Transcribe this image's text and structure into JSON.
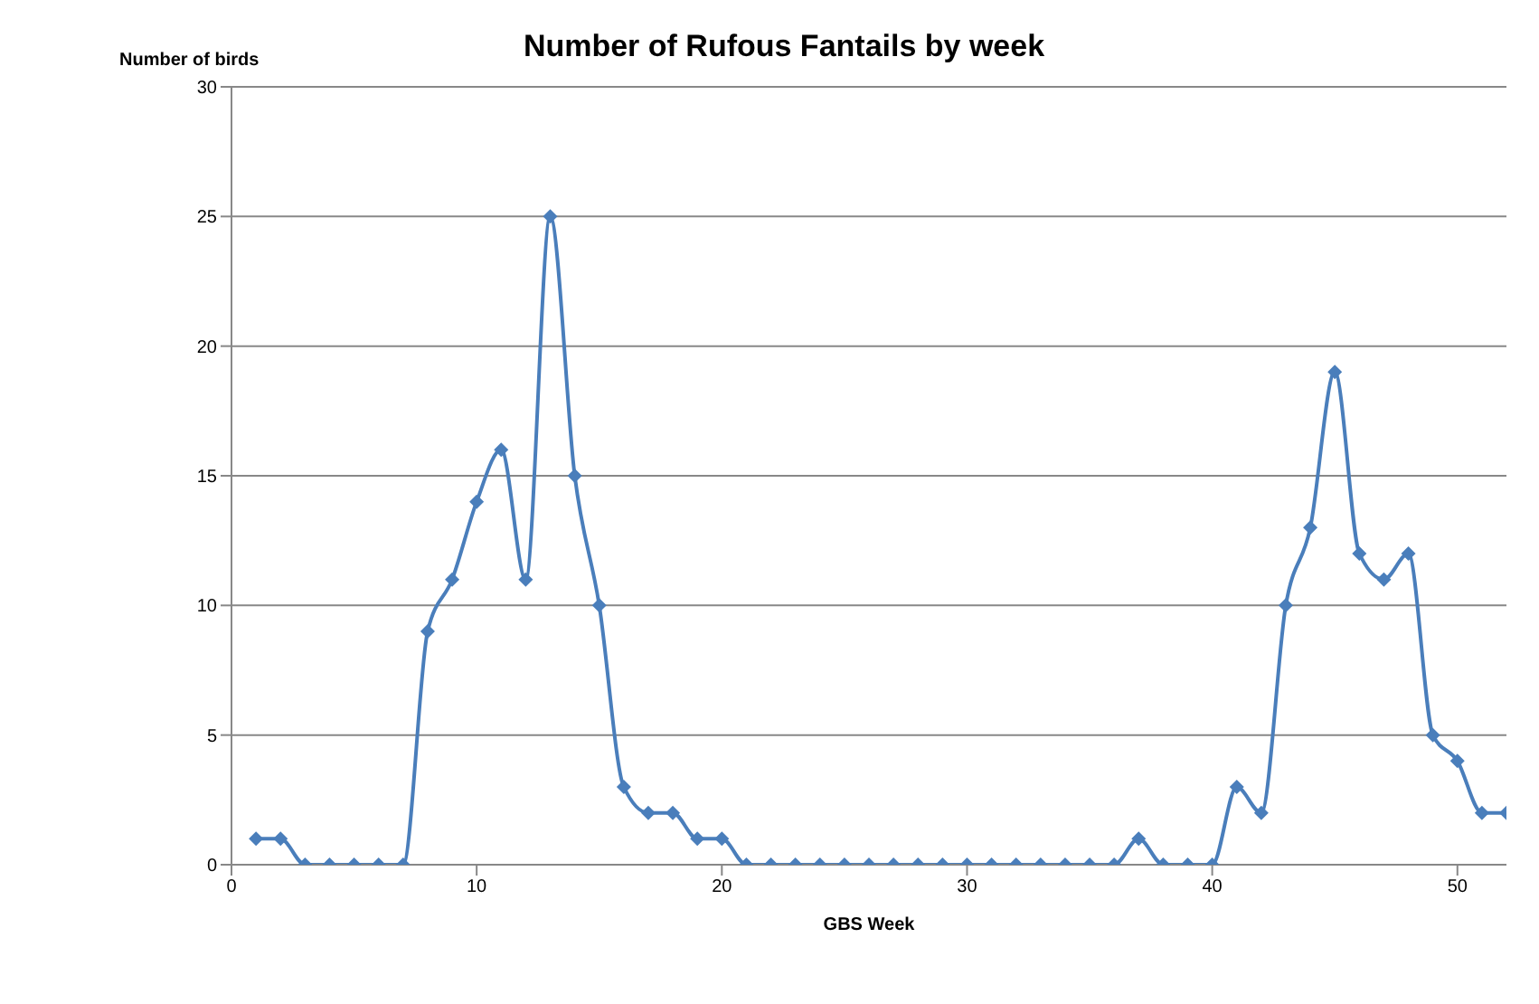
{
  "chart_data": {
    "type": "line",
    "title": "Number of Rufous Fantails by week",
    "xlabel": "GBS Week",
    "ylabel": "Number of birds",
    "x": [
      1,
      2,
      3,
      4,
      5,
      6,
      7,
      8,
      9,
      10,
      11,
      12,
      13,
      14,
      15,
      16,
      17,
      18,
      19,
      20,
      21,
      22,
      23,
      24,
      25,
      26,
      27,
      28,
      29,
      30,
      31,
      32,
      33,
      34,
      35,
      36,
      37,
      38,
      39,
      40,
      41,
      42,
      43,
      44,
      45,
      46,
      47,
      48,
      49,
      50,
      51,
      52
    ],
    "series": [
      {
        "color": "#4a7ebb",
        "values": [
          1,
          1,
          0,
          0,
          0,
          0,
          0,
          9,
          11,
          14,
          16,
          11,
          25,
          15,
          10,
          3,
          2,
          2,
          1,
          1,
          0,
          0,
          0,
          0,
          0,
          0,
          0,
          0,
          0,
          0,
          0,
          0,
          0,
          0,
          0,
          0,
          1,
          0,
          0,
          0,
          3,
          2,
          10,
          13,
          19,
          12,
          11,
          12,
          5,
          4,
          2,
          2
        ]
      }
    ],
    "xlim": [
      0,
      52
    ],
    "xticks": [
      0,
      10,
      20,
      30,
      40,
      50
    ],
    "ylim": [
      0,
      30
    ],
    "yticks": [
      0,
      5,
      10,
      15,
      20,
      25,
      30
    ],
    "grid": "y",
    "marker": "diamond",
    "line_style": "solid"
  }
}
